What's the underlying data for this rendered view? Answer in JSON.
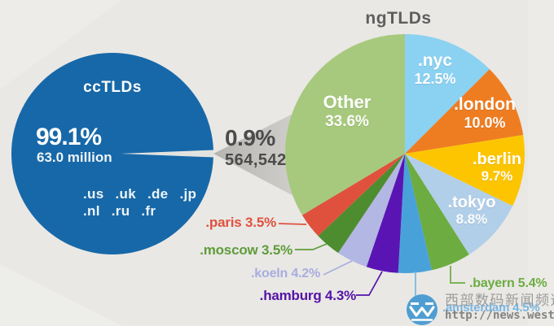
{
  "left_chart": {
    "title": "ccTLDs",
    "share": "99.1%",
    "total": "63.0 million",
    "examples_line1": ".us .uk .de .jp",
    "examples_line2": ".nl .ru .fr",
    "circle_color": "#1768a8"
  },
  "bridge": {
    "share": "0.9%",
    "total": "564,542"
  },
  "chart_data": {
    "type": "pie",
    "title": "ngTLDs",
    "start_angle_deg": 0,
    "direction": "clockwise",
    "unit": "percent",
    "slices": [
      {
        "label": ".nyc",
        "value": 12.5,
        "color": "#8bd1f1",
        "label_placement": "inside",
        "label_color": "#ffffff"
      },
      {
        "label": ".london",
        "value": 10.0,
        "color": "#ee7d22",
        "label_placement": "inside",
        "label_color": "#ffffff"
      },
      {
        "label": ".berlin",
        "value": 9.7,
        "color": "#fdc500",
        "label_placement": "inside",
        "label_color": "#ffffff"
      },
      {
        "label": ".tokyo",
        "value": 8.8,
        "color": "#b2cfe9",
        "label_placement": "inside",
        "label_color": "#ffffff"
      },
      {
        "label": ".bayern",
        "value": 5.4,
        "color": "#6cac41",
        "label_placement": "outside",
        "label_color": "#6cac41"
      },
      {
        "label": ".amsterdam",
        "value": 4.5,
        "color": "#49a1d9",
        "label_placement": "outside",
        "label_color": "#7ab6e0"
      },
      {
        "label": ".hamburg",
        "value": 4.3,
        "color": "#5a14b4",
        "label_placement": "outside",
        "label_color": "#5512a6"
      },
      {
        "label": ".koeln",
        "value": 4.2,
        "color": "#b2b7e3",
        "label_placement": "outside",
        "label_color": "#a9addf"
      },
      {
        "label": ".moscow",
        "value": 3.5,
        "color": "#4e8c30",
        "label_placement": "outside",
        "label_color": "#5f9c3a"
      },
      {
        "label": ".paris",
        "value": 3.5,
        "color": "#e0513d",
        "label_placement": "outside",
        "label_color": "#e0513d"
      },
      {
        "label": "Other",
        "value": 33.6,
        "color": "#a7c97d",
        "label_placement": "inside",
        "label_color": "#ffffff"
      }
    ],
    "context": {
      "cctlds_share": "99.1%",
      "cctlds_total": "63.0 million",
      "cctld_examples": [
        ".us",
        ".uk",
        ".de",
        ".jp",
        ".nl",
        ".ru",
        ".fr"
      ],
      "ngtlds_share": "0.9%",
      "ngtlds_total": "564,542"
    }
  },
  "watermark": {
    "site": "西部数码新闻频道",
    "url": "http://news.west.cn",
    "logo": "west-w-logo"
  },
  "colors": {
    "background": "#e9e8e5",
    "cc_circle": "#1768a8",
    "beam_dark": "#bcbbb8",
    "beam_light": "#dad9d6",
    "title_gray": "#5e5e5e",
    "bridge_gray": "#4b4b4b"
  }
}
